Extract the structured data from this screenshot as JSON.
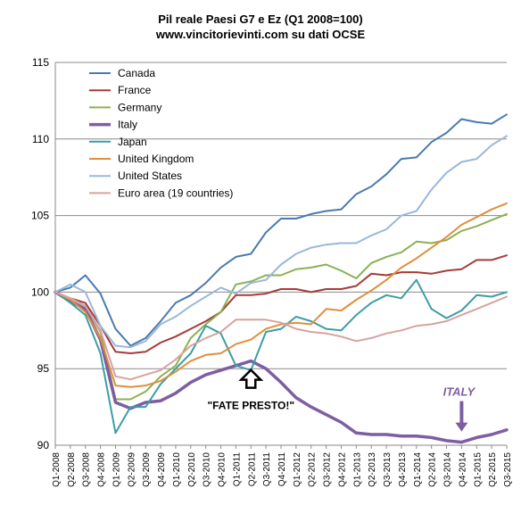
{
  "chart_data": {
    "type": "line",
    "title": "Pil reale Paesi G7 e Ez (Q1 2008=100)",
    "subtitle": "www.vincitorievinti.com su dati OCSE",
    "ylim": [
      90,
      115
    ],
    "yticks": [
      90,
      95,
      100,
      105,
      110,
      115
    ],
    "grid": true,
    "legend_position": "top-left",
    "categories": [
      "Q1-2008",
      "Q2-2008",
      "Q3-2008",
      "Q4-2008",
      "Q1-2009",
      "Q2-2009",
      "Q3-2009",
      "Q4-2009",
      "Q1-2010",
      "Q2-2010",
      "Q3-2010",
      "Q4-2010",
      "Q1-2011",
      "Q2-2011",
      "Q3-2011",
      "Q4-2011",
      "Q1-2012",
      "Q2-2012",
      "Q3-2012",
      "Q4-2012",
      "Q1-2013",
      "Q2-2013",
      "Q3-2013",
      "Q4-2013",
      "Q1-2014",
      "Q2-2014",
      "Q3-2014",
      "Q4-2014",
      "Q1-2015",
      "Q2-2015",
      "Q3-2015"
    ],
    "xtick_labels": [
      "Q1-2008",
      "Q2-2008",
      "Q3-2008",
      "Q4-2008",
      "Q1-2009",
      "Q2-2009",
      "Q3-2009",
      "Q4-2009",
      "Q1-2010",
      "Q2-2010",
      "Q3-2010",
      "Q4-2010",
      "Q1-2011",
      "Q2-2011",
      "Q3-2011",
      "Q4-2011",
      "Q1-2012",
      "Q2-2012",
      "Q3-2012",
      "Q4-2012",
      "Q1-2013",
      "Q2-2013",
      "Q3-2013",
      "Q4-2013",
      "Q1-2014",
      "Q2-2014",
      "Q3-2014",
      "Q4-2014",
      "Q1-2015",
      "Q2-2015",
      "Q3-2015"
    ],
    "series": [
      {
        "name": "Canada",
        "color": "#4a7ab0",
        "width": 2,
        "values": [
          100,
          100.3,
          101.1,
          99.9,
          97.6,
          96.5,
          97.0,
          98.1,
          99.3,
          99.8,
          100.6,
          101.6,
          102.3,
          102.5,
          103.9,
          104.8,
          104.8,
          105.1,
          105.3,
          105.4,
          106.4,
          106.9,
          107.7,
          108.7,
          108.8,
          109.8,
          110.4,
          111.3,
          111.1,
          111.0,
          111.6
        ]
      },
      {
        "name": "France",
        "color": "#a63b38",
        "width": 2,
        "values": [
          100,
          99.6,
          99.3,
          97.8,
          96.1,
          96.0,
          96.1,
          96.7,
          97.1,
          97.6,
          98.1,
          98.7,
          99.8,
          99.8,
          99.9,
          100.2,
          100.2,
          100.0,
          100.2,
          100.2,
          100.4,
          101.2,
          101.1,
          101.3,
          101.3,
          101.2,
          101.4,
          101.5,
          102.1,
          102.1,
          102.4
        ]
      },
      {
        "name": "Germany",
        "color": "#8cb054",
        "width": 2,
        "values": [
          100,
          99.6,
          99.1,
          97.4,
          93.0,
          93.0,
          93.5,
          94.5,
          95.2,
          97.0,
          97.9,
          98.7,
          100.5,
          100.7,
          101.1,
          101.1,
          101.5,
          101.6,
          101.8,
          101.4,
          100.9,
          101.9,
          102.3,
          102.6,
          103.3,
          103.2,
          103.4,
          104.0,
          104.3,
          104.7,
          105.1
        ]
      },
      {
        "name": "Italy",
        "color": "#7d5ea3",
        "width": 3.5,
        "values": [
          100,
          99.4,
          98.9,
          96.9,
          92.8,
          92.4,
          92.8,
          92.9,
          93.4,
          94.1,
          94.6,
          94.9,
          95.2,
          95.5,
          95.0,
          94.1,
          93.1,
          92.5,
          92.0,
          91.5,
          90.8,
          90.7,
          90.7,
          90.6,
          90.6,
          90.5,
          90.3,
          90.2,
          90.5,
          90.7,
          91.0
        ]
      },
      {
        "name": "Japan",
        "color": "#3c9da5",
        "width": 2,
        "values": [
          100,
          99.3,
          98.5,
          96.0,
          90.8,
          92.5,
          92.5,
          94.0,
          95.0,
          96.0,
          97.8,
          97.3,
          95.2,
          94.9,
          97.4,
          97.6,
          98.4,
          98.1,
          97.6,
          97.5,
          98.5,
          99.3,
          99.8,
          99.6,
          100.8,
          98.9,
          98.3,
          98.8,
          99.8,
          99.7,
          100.0
        ]
      },
      {
        "name": "United Kingdom",
        "color": "#e08f3c",
        "width": 2,
        "values": [
          100,
          99.5,
          98.7,
          97.0,
          93.9,
          93.8,
          93.9,
          94.2,
          94.8,
          95.5,
          95.9,
          96.0,
          96.6,
          96.9,
          97.6,
          97.9,
          98.0,
          97.9,
          98.9,
          98.8,
          99.5,
          100.1,
          100.8,
          101.6,
          102.2,
          102.9,
          103.6,
          104.4,
          104.9,
          105.4,
          105.8
        ]
      },
      {
        "name": "United States",
        "color": "#9ab7dc",
        "width": 2,
        "values": [
          100,
          100.5,
          100.0,
          97.8,
          96.5,
          96.4,
          96.8,
          97.9,
          98.4,
          99.1,
          99.7,
          100.3,
          99.9,
          100.6,
          100.8,
          101.8,
          102.5,
          102.9,
          103.1,
          103.2,
          103.2,
          103.7,
          104.1,
          105.0,
          105.3,
          106.7,
          107.8,
          108.5,
          108.7,
          109.6,
          110.2
        ]
      },
      {
        "name": "Euro area (19 countries)",
        "color": "#d7a39e",
        "width": 2,
        "values": [
          100,
          99.6,
          99.1,
          97.5,
          94.5,
          94.3,
          94.6,
          94.9,
          95.6,
          96.5,
          97.0,
          97.4,
          98.2,
          98.2,
          98.2,
          98.0,
          97.6,
          97.4,
          97.3,
          97.1,
          96.8,
          97.0,
          97.3,
          97.5,
          97.8,
          97.9,
          98.1,
          98.5,
          98.9,
          99.3,
          99.7
        ]
      }
    ],
    "annotations": [
      {
        "text": "\"FATE PRESTO!\"",
        "category_index": 13,
        "value": 95.5,
        "kind": "up-arrow"
      },
      {
        "text": "ITALY",
        "category_index": 27,
        "value": 90.2,
        "kind": "down-arrow"
      }
    ]
  }
}
